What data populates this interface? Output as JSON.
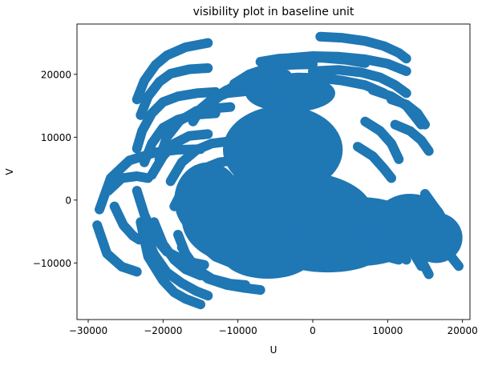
{
  "chart_data": {
    "type": "scatter",
    "title": "visibility plot in baseline unit",
    "xlabel": "U",
    "ylabel": "V",
    "xlim": [
      -31500,
      21000
    ],
    "ylim": [
      -19000,
      28000
    ],
    "xticks": [
      -30000,
      -20000,
      -10000,
      0,
      10000,
      20000
    ],
    "yticks": [
      -10000,
      0,
      10000,
      20000
    ],
    "xtick_labels": [
      "−30000",
      "−20000",
      "−10000",
      "0",
      "10000",
      "20000"
    ],
    "ytick_labels": [
      "−10000",
      "0",
      "10000",
      "20000"
    ],
    "grid": false,
    "marker_color": "#1f77b4",
    "tracks": [
      {
        "u": [
          -28500,
          -27000,
          -24500,
          -21000,
          -18000,
          -15000
        ],
        "v": [
          -1500,
          3500,
          6300,
          7600,
          8000,
          8100
        ]
      },
      {
        "u": [
          -28800,
          -27500,
          -25500,
          -23500
        ],
        "v": [
          -4000,
          -8500,
          -10600,
          -11400
        ]
      },
      {
        "u": [
          -27300,
          -25500,
          -23500,
          -22000
        ],
        "v": [
          1500,
          3500,
          3800,
          3500
        ]
      },
      {
        "u": [
          -26500,
          -25300,
          -24000,
          -23200
        ],
        "v": [
          -1000,
          -4000,
          -5700,
          -6300
        ]
      },
      {
        "u": [
          -23500,
          -22500,
          -21200,
          -19500,
          -17000,
          -14500
        ],
        "v": [
          1500,
          -2300,
          -5800,
          -8200,
          -9700,
          -10300
        ]
      },
      {
        "u": [
          -23000,
          -22000,
          -20000,
          -18500,
          -17000,
          -15000
        ],
        "v": [
          -3500,
          -9000,
          -12800,
          -14700,
          -15700,
          -16600
        ]
      },
      {
        "u": [
          -22500,
          -21200,
          -19500,
          -17500,
          -15500,
          -14000
        ],
        "v": [
          -5000,
          -8600,
          -11500,
          -13200,
          -14500,
          -15200
        ]
      },
      {
        "u": [
          -21200,
          -20000,
          -18500,
          -17000,
          -15000
        ],
        "v": [
          -3500,
          -7000,
          -9500,
          -11000,
          -12000
        ]
      },
      {
        "u": [
          -23500,
          -22500,
          -21000,
          -19500,
          -17000,
          -14000
        ],
        "v": [
          16000,
          19000,
          21500,
          23000,
          24300,
          25000
        ]
      },
      {
        "u": [
          -23000,
          -22000,
          -20500,
          -19000,
          -16500,
          -14000
        ],
        "v": [
          13500,
          16500,
          18800,
          20100,
          20800,
          21000
        ]
      },
      {
        "u": [
          -23500,
          -22800,
          -21500,
          -20000,
          -18000,
          -15500,
          -13000
        ],
        "v": [
          8200,
          11000,
          13800,
          15600,
          16500,
          17000,
          17200
        ]
      },
      {
        "u": [
          -22500,
          -21500,
          -20000,
          -18000,
          -15500,
          -13000
        ],
        "v": [
          6000,
          9000,
          11500,
          12800,
          13600,
          13800
        ]
      },
      {
        "u": [
          -21500,
          -20000,
          -18500,
          -16500,
          -14000
        ],
        "v": [
          4000,
          7000,
          9000,
          10200,
          10500
        ]
      },
      {
        "u": [
          -20500,
          -19500,
          -17800,
          -15500,
          -13000,
          -11000
        ],
        "v": [
          6500,
          10000,
          12600,
          14200,
          14600,
          14800
        ]
      },
      {
        "u": [
          -19000,
          -17500,
          -15500,
          -13500,
          -11500
        ],
        "v": [
          3000,
          6000,
          8000,
          9000,
          9300
        ]
      },
      {
        "u": [
          -18500,
          -17000,
          -15000,
          -12500,
          -10000
        ],
        "v": [
          -1000,
          2500,
          4800,
          6000,
          6400
        ]
      },
      {
        "u": [
          -18000,
          -17000,
          -15500,
          -13500,
          -11000,
          -9000
        ],
        "v": [
          -5500,
          -8500,
          -11000,
          -12500,
          -13300,
          -13500
        ]
      },
      {
        "u": [
          -17500,
          -16000,
          -14000,
          -11500,
          -9000,
          -7000
        ],
        "v": [
          -7500,
          -10500,
          -12500,
          -13500,
          -14000,
          -14300
        ]
      },
      {
        "u": [
          -16500,
          -15000,
          -13000,
          -10500,
          -8000
        ],
        "v": [
          -4000,
          -7000,
          -9000,
          -10200,
          -10700
        ]
      },
      {
        "u": [
          -16000,
          -15000,
          -13500,
          -11500,
          -9000
        ],
        "v": [
          12500,
          14500,
          16000,
          17000,
          17300
        ]
      },
      {
        "u": [
          -15000,
          -13500,
          -11500,
          -9000,
          -6500
        ],
        "v": [
          14000,
          16000,
          17500,
          18300,
          18600
        ]
      },
      {
        "u": [
          -13000,
          -11000,
          -8500,
          -6000,
          -3500
        ],
        "v": [
          16000,
          17800,
          19000,
          19700,
          19900
        ]
      },
      {
        "u": [
          -10500,
          -8500,
          -6000,
          -3000,
          0
        ],
        "v": [
          18500,
          20000,
          21000,
          21500,
          21600
        ]
      },
      {
        "u": [
          -7000,
          -4500,
          -1500,
          1500,
          4500,
          7000
        ],
        "v": [
          22000,
          22500,
          22700,
          22600,
          22300,
          21800
        ]
      },
      {
        "u": [
          -6500,
          -3000,
          0,
          3500,
          7000,
          10000,
          12500
        ],
        "v": [
          21500,
          22600,
          22900,
          22800,
          22400,
          21700,
          20500
        ]
      },
      {
        "u": [
          1000,
          4000,
          7000,
          9500,
          11500,
          12500
        ],
        "v": [
          26000,
          25800,
          25300,
          24500,
          23400,
          22500
        ]
      },
      {
        "u": [
          0,
          3500,
          6500,
          9000,
          11000,
          12500
        ],
        "v": [
          20500,
          20700,
          20300,
          19500,
          18300,
          17000
        ]
      },
      {
        "u": [
          -8000,
          -5000,
          -2000,
          1000,
          4000,
          7000,
          9500
        ],
        "v": [
          18500,
          19200,
          19500,
          19400,
          19000,
          18300,
          17000
        ]
      },
      {
        "u": [
          8000,
          10500,
          12500,
          13500,
          14500
        ],
        "v": [
          17500,
          16500,
          15000,
          13500,
          12000
        ]
      },
      {
        "u": [
          10500,
          12500,
          14000,
          15000
        ],
        "v": [
          16000,
          15200,
          13800,
          12000
        ]
      },
      {
        "u": [
          11000,
          13000,
          14500,
          15500
        ],
        "v": [
          12000,
          11000,
          9500,
          7800
        ]
      },
      {
        "u": [
          7000,
          9000,
          10500,
          11500
        ],
        "v": [
          12500,
          11000,
          9000,
          6500
        ]
      },
      {
        "u": [
          6000,
          8000,
          9500,
          10500
        ],
        "v": [
          8500,
          7000,
          5000,
          3500
        ]
      },
      {
        "u": [
          12000,
          13500,
          14500,
          15500
        ],
        "v": [
          -3000,
          -6500,
          -9500,
          -11800
        ]
      },
      {
        "u": [
          10500,
          12000,
          13500,
          14500
        ],
        "v": [
          -2500,
          -5500,
          -8500,
          -10500
        ]
      },
      {
        "u": [
          8500,
          10000,
          11500,
          12500
        ],
        "v": [
          -4000,
          -6000,
          -8000,
          -9500
        ]
      },
      {
        "u": [
          15000,
          16500,
          18000,
          19000
        ],
        "v": [
          1000,
          -1500,
          -4500,
          -7000
        ]
      },
      {
        "u": [
          14000,
          15500,
          17000,
          18500,
          19500
        ],
        "v": [
          -1000,
          -3500,
          -6500,
          -9000,
          -10500
        ]
      },
      {
        "u": [
          7000,
          9000,
          10500,
          11500
        ],
        "v": [
          -7000,
          -8500,
          -9200,
          -9500
        ]
      }
    ],
    "blobs": [
      {
        "u": [
          -4000,
          3000
        ],
        "v": [
          8000,
          12000
        ],
        "r": [
          8000,
          7000
        ]
      },
      {
        "u": [
          -2000,
          4000
        ],
        "v": [
          -2000,
          2000
        ],
        "r": [
          10000,
          6500
        ]
      },
      {
        "u": [
          -10000,
          3000
        ],
        "v": [
          -3000,
          1000
        ],
        "r": [
          7500,
          7000
        ]
      },
      {
        "u": [
          6000,
          3000
        ],
        "v": [
          -5000,
          4000
        ],
        "r": [
          9000,
          5500
        ]
      },
      {
        "u": [
          13000,
          1800
        ],
        "v": [
          -4000,
          2000
        ],
        "r": [
          5000,
          5000
        ]
      },
      {
        "u": [
          16500,
          2000
        ],
        "v": [
          -6000,
          2000
        ],
        "r": [
          3500,
          4000
        ]
      },
      {
        "u": [
          -6000,
          2500
        ],
        "v": [
          -9000,
          1500
        ],
        "r": [
          6000,
          3500
        ]
      },
      {
        "u": [
          2000,
          2500
        ],
        "v": [
          -8500,
          1500
        ],
        "r": [
          7000,
          3000
        ]
      },
      {
        "u": [
          -14000,
          1500
        ],
        "v": [
          0,
          2000
        ],
        "r": [
          4500,
          6000
        ]
      },
      {
        "u": [
          -3000,
          2500
        ],
        "v": [
          17000,
          2500
        ],
        "r": [
          6000,
          3000
        ]
      }
    ]
  }
}
